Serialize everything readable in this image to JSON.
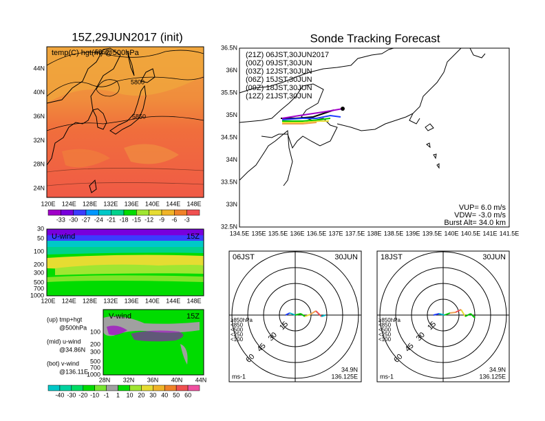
{
  "left_map": {
    "title": "15Z,29JUN2017 (init)",
    "label": "temp(C) hgt(m) @500hPa",
    "contour_labels": [
      "5850",
      "5800",
      "5850"
    ],
    "lat_labels": [
      "44N",
      "40N",
      "36N",
      "32N",
      "28N",
      "24N"
    ],
    "lon_labels": [
      "120E",
      "124E",
      "128E",
      "132E",
      "136E",
      "140E",
      "144E",
      "148E"
    ],
    "colorbar_labels": [
      "-33",
      "-30",
      "-27",
      "-24",
      "-21",
      "-18",
      "-15",
      "-12",
      "-9",
      "-6",
      "-3"
    ],
    "colorbar_colors": [
      "#a000c8",
      "#7800dc",
      "#3c3cff",
      "#0096ff",
      "#00c8c8",
      "#00d28c",
      "#00dc00",
      "#a0e632",
      "#e6dc32",
      "#f0b428",
      "#f08228",
      "#f05050"
    ]
  },
  "u_wind": {
    "title": "U-wind",
    "time": "15Z",
    "pressure_labels": [
      "30",
      "50",
      "100",
      "200",
      "300",
      "500",
      "700",
      "1000"
    ],
    "lon_labels": [
      "120E",
      "124E",
      "128E",
      "132E",
      "136E",
      "140E",
      "144E",
      "148E"
    ]
  },
  "notes": [
    "(up) tmp+hgt",
    "@500hPa",
    "(mid) u-wind",
    "@34.86N",
    "(bot) v-wind",
    "@136.11E"
  ],
  "v_wind": {
    "title": "V-wind",
    "time": "15Z",
    "pressure_labels": [
      "100",
      "200",
      "300",
      "500",
      "700",
      "1000"
    ],
    "lat_labels": [
      "28N",
      "32N",
      "36N",
      "40N",
      "44N"
    ],
    "colorbar_labels": [
      "-40",
      "-30",
      "-20",
      "-10",
      "-1",
      "1",
      "10",
      "20",
      "30",
      "40",
      "50",
      "60"
    ],
    "colorbar_colors": [
      "#00c8c8",
      "#00d2a0",
      "#00dc64",
      "#00dc00",
      "#78e632",
      "#a0a0a0",
      "#00dc00",
      "#a0e632",
      "#e6dc32",
      "#f0b428",
      "#f08228",
      "#f05050",
      "#f050a0"
    ]
  },
  "track_map": {
    "title": "Sonde Tracking Forecast",
    "lat_labels": [
      "36.5N",
      "36N",
      "35.5N",
      "35N",
      "34.5N",
      "34N",
      "33.5N",
      "33N",
      "32.5N"
    ],
    "lon_labels": [
      "134.5E",
      "135E",
      "135.5E",
      "136E",
      "136.5E",
      "137E",
      "137.5E",
      "138E",
      "138.5E",
      "139E",
      "139.5E",
      "140E",
      "140.5E",
      "141E",
      "141.5E"
    ],
    "legend": [
      {
        "text": "(21Z) 06JST,30JUN2017",
        "color": "#000000"
      },
      {
        "text": "(00Z) 09JST,30JUN",
        "color": "#a000c8"
      },
      {
        "text": "(03Z) 12JST,30JUN",
        "color": "#1e3cff"
      },
      {
        "text": "(06Z) 15JST,30JUN",
        "color": "#00c800"
      },
      {
        "text": "(09Z) 18JST,30JUN",
        "color": "#e6dc32"
      },
      {
        "text": "(12Z) 21JST,30JUN",
        "color": "#f0a050"
      }
    ],
    "params": [
      "VUP= 6.0 m/s",
      "VDW= -3.0 m/s",
      "Burst Alt= 34.0 km"
    ]
  },
  "hodographs": [
    {
      "time": "06JST",
      "date": "30JUN",
      "lat": "34.9N",
      "lon": "136.125E",
      "unit": "ms-1"
    },
    {
      "time": "18JST",
      "date": "30JUN",
      "lat": "34.9N",
      "lon": "136.125E",
      "unit": "ms-1"
    }
  ],
  "ring_labels": [
    "15",
    "30",
    "45",
    "60"
  ],
  "pressure_legend": [
    {
      "text": "≥850hPa",
      "color": "#f05050"
    },
    {
      "text": "<850",
      "color": "#f0a050"
    },
    {
      "text": "<500",
      "color": "#00c800"
    },
    {
      "text": "<250",
      "color": "#00b4c8"
    },
    {
      "text": "<100",
      "color": "#1e3cff"
    }
  ]
}
